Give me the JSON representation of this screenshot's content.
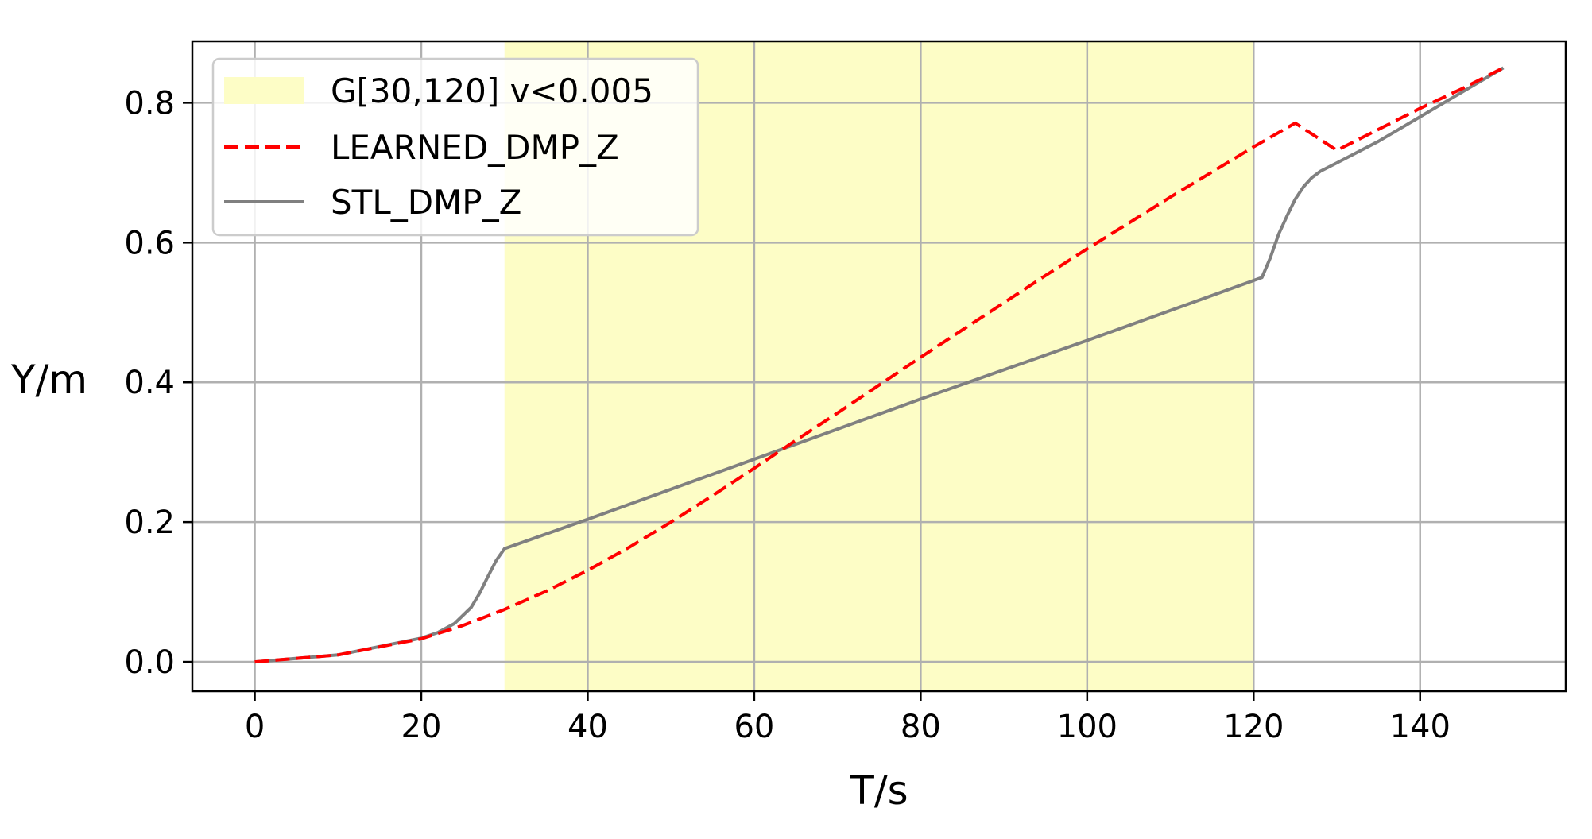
{
  "chart_data": {
    "type": "line",
    "title": "",
    "xlabel": "T/s",
    "ylabel": "Y/m",
    "xlim": [
      -7.5,
      157.5
    ],
    "ylim": [
      -0.042,
      0.888
    ],
    "xticks": [
      0,
      20,
      40,
      60,
      80,
      100,
      120,
      140
    ],
    "yticks": [
      0.0,
      0.2,
      0.4,
      0.6,
      0.8
    ],
    "xtick_labels": [
      "0",
      "20",
      "40",
      "60",
      "80",
      "100",
      "120",
      "140"
    ],
    "ytick_labels": [
      "0.0",
      "0.2",
      "0.4",
      "0.6",
      "0.8"
    ],
    "grid": true,
    "legend": {
      "placement": "top-left",
      "entries": [
        "G[30,120] v<0.005",
        "LEARNED_DMP_Z",
        "STL_DMP_Z"
      ]
    },
    "shaded_region": {
      "name": "G[30,120] v<0.005",
      "x_start": 30,
      "x_end": 120,
      "color": "#fdfdc6"
    },
    "series": [
      {
        "name": "LEARNED_DMP_Z",
        "style": "dashed",
        "color": "#ff0000",
        "x": [
          0,
          10,
          20,
          25,
          30,
          35,
          40,
          45,
          50,
          55,
          60,
          65,
          70,
          75,
          80,
          85,
          90,
          95,
          100,
          105,
          110,
          115,
          120,
          125,
          130,
          135,
          140,
          145,
          150
        ],
        "y": [
          0.0,
          0.01,
          0.033,
          0.052,
          0.075,
          0.101,
          0.131,
          0.164,
          0.2,
          0.238,
          0.277,
          0.317,
          0.356,
          0.396,
          0.436,
          0.475,
          0.514,
          0.553,
          0.591,
          0.628,
          0.665,
          0.701,
          0.737,
          0.771,
          0.732,
          0.762,
          0.792,
          0.82,
          0.85
        ]
      },
      {
        "name": "STL_DMP_Z",
        "style": "solid",
        "color": "#808080",
        "x": [
          0,
          10,
          20,
          22,
          24,
          26,
          27,
          28,
          29,
          30,
          40,
          60,
          80,
          100,
          121,
          122,
          123,
          124,
          125,
          126,
          127,
          128,
          130,
          135,
          140,
          145,
          150
        ],
        "y": [
          0.0,
          0.01,
          0.034,
          0.042,
          0.055,
          0.078,
          0.098,
          0.122,
          0.145,
          0.162,
          0.204,
          0.29,
          0.376,
          0.46,
          0.55,
          0.578,
          0.612,
          0.638,
          0.662,
          0.68,
          0.693,
          0.702,
          0.714,
          0.745,
          0.78,
          0.815,
          0.85
        ]
      }
    ]
  }
}
